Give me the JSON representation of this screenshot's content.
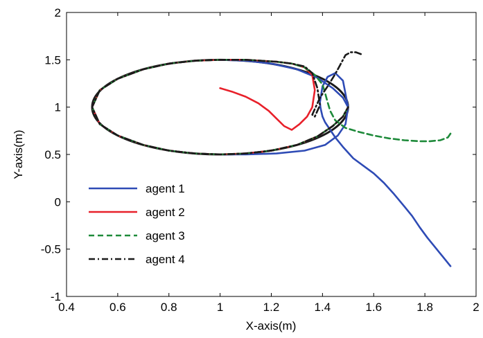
{
  "chart_data": {
    "type": "line",
    "title": "",
    "xlabel": "X-axis(m)",
    "ylabel": "Y-axis(m)",
    "xlim": [
      0.4,
      2
    ],
    "ylim": [
      -1,
      2
    ],
    "xticks": [
      0.4,
      0.6,
      0.8,
      1,
      1.2,
      1.4,
      1.6,
      1.8,
      2
    ],
    "xtick_labels": [
      "0.4",
      "0.6",
      "0.8",
      "1",
      "1.2",
      "1.4",
      "1.6",
      "1.8",
      "2"
    ],
    "yticks": [
      -1,
      -0.5,
      0,
      0.5,
      1,
      1.5,
      2
    ],
    "ytick_labels": [
      "-1",
      "-0.5",
      "0",
      "0.5",
      "1",
      "1.5",
      "2"
    ],
    "grid": false,
    "legend_position": "bottom-left",
    "reference_ellipse": {
      "cx": 1.0,
      "cy": 1.0,
      "rx": 0.5,
      "ry": 0.5,
      "color": "#1a1a1a"
    },
    "series": [
      {
        "name": "agent 1",
        "color": "#2e4bb5",
        "dash": "solid",
        "x": [
          1.9,
          1.87,
          1.84,
          1.81,
          1.78,
          1.75,
          1.72,
          1.68,
          1.64,
          1.6,
          1.56,
          1.52,
          1.48,
          1.45,
          1.43,
          1.41,
          1.4,
          1.395,
          1.392,
          1.39,
          1.4,
          1.42,
          1.45,
          1.48,
          1.5,
          1.49,
          1.46,
          1.41,
          1.33,
          1.22,
          1.1,
          1.0,
          0.9,
          0.8,
          0.7,
          0.6,
          0.53,
          0.5,
          0.53,
          0.6,
          0.7,
          0.8,
          0.9,
          1.0,
          1.1,
          1.2,
          1.3,
          1.38,
          1.44,
          1.48,
          1.5
        ],
        "y": [
          -0.68,
          -0.58,
          -0.48,
          -0.38,
          -0.27,
          -0.15,
          -0.05,
          0.08,
          0.2,
          0.3,
          0.38,
          0.46,
          0.58,
          0.68,
          0.76,
          0.84,
          0.9,
          0.96,
          1.0,
          1.05,
          1.22,
          1.32,
          1.36,
          1.28,
          1.0,
          0.82,
          0.7,
          0.6,
          0.54,
          0.51,
          0.5,
          0.5,
          0.51,
          0.54,
          0.6,
          0.7,
          0.82,
          1.0,
          1.18,
          1.3,
          1.4,
          1.46,
          1.49,
          1.5,
          1.49,
          1.46,
          1.4,
          1.31,
          1.2,
          1.1,
          1.0
        ]
      },
      {
        "name": "agent 2",
        "color": "#e8202a",
        "dash": "solid",
        "x": [
          1.0,
          1.05,
          1.1,
          1.15,
          1.19,
          1.22,
          1.25,
          1.28,
          1.31,
          1.34,
          1.36,
          1.37,
          1.36,
          1.33,
          1.28,
          1.22,
          1.1,
          1.0,
          0.9,
          0.8,
          0.7,
          0.6,
          0.53,
          0.5,
          0.53,
          0.6,
          0.7,
          0.8,
          0.9,
          1.0,
          1.1,
          1.2,
          1.3,
          1.38,
          1.44,
          1.48,
          1.5
        ],
        "y": [
          1.2,
          1.16,
          1.11,
          1.04,
          0.96,
          0.88,
          0.8,
          0.76,
          0.82,
          0.9,
          1.0,
          1.18,
          1.34,
          1.42,
          1.46,
          1.48,
          1.5,
          1.5,
          1.49,
          1.46,
          1.4,
          1.3,
          1.18,
          1.0,
          0.82,
          0.7,
          0.6,
          0.54,
          0.51,
          0.5,
          0.51,
          0.54,
          0.6,
          0.69,
          0.8,
          0.9,
          1.0
        ]
      },
      {
        "name": "agent 3",
        "color": "#1e8a3a",
        "dash": "dashed",
        "x": [
          1.9,
          1.89,
          1.86,
          1.82,
          1.78,
          1.72,
          1.66,
          1.6,
          1.54,
          1.49,
          1.45,
          1.43,
          1.42,
          1.41,
          1.4,
          1.37,
          1.33,
          1.28,
          1.22,
          1.1,
          1.0,
          0.9,
          0.8,
          0.7,
          0.6,
          0.53,
          0.5,
          0.53,
          0.6,
          0.7,
          0.8,
          0.9,
          1.0,
          1.1,
          1.2,
          1.3,
          1.38,
          1.44,
          1.48,
          1.5
        ],
        "y": [
          0.72,
          0.68,
          0.65,
          0.64,
          0.64,
          0.65,
          0.67,
          0.7,
          0.74,
          0.78,
          0.86,
          0.96,
          1.05,
          1.15,
          1.24,
          1.34,
          1.42,
          1.46,
          1.48,
          1.5,
          1.5,
          1.49,
          1.46,
          1.4,
          1.3,
          1.18,
          1.0,
          0.82,
          0.7,
          0.6,
          0.54,
          0.51,
          0.5,
          0.51,
          0.54,
          0.6,
          0.69,
          0.8,
          0.9,
          1.0
        ]
      },
      {
        "name": "agent 4",
        "color": "#1a1a1a",
        "dash": "dashdot",
        "x": [
          1.55,
          1.53,
          1.51,
          1.49,
          1.48,
          1.47,
          1.45,
          1.42,
          1.39,
          1.37,
          1.36,
          1.37,
          1.39,
          1.38,
          1.36,
          1.33,
          1.28,
          1.22,
          1.1,
          1.0,
          0.9,
          0.8,
          0.7,
          0.6,
          0.53,
          0.5,
          0.53,
          0.6,
          0.7,
          0.8,
          0.9,
          1.0,
          1.1,
          1.2,
          1.3,
          1.38,
          1.44,
          1.48,
          1.5
        ],
        "y": [
          1.56,
          1.58,
          1.58,
          1.55,
          1.5,
          1.45,
          1.35,
          1.22,
          1.1,
          0.98,
          0.92,
          0.9,
          1.02,
          1.2,
          1.36,
          1.43,
          1.46,
          1.48,
          1.5,
          1.5,
          1.49,
          1.46,
          1.4,
          1.3,
          1.18,
          1.0,
          0.82,
          0.7,
          0.6,
          0.54,
          0.51,
          0.5,
          0.51,
          0.54,
          0.6,
          0.69,
          0.8,
          0.9,
          1.0
        ]
      }
    ]
  }
}
